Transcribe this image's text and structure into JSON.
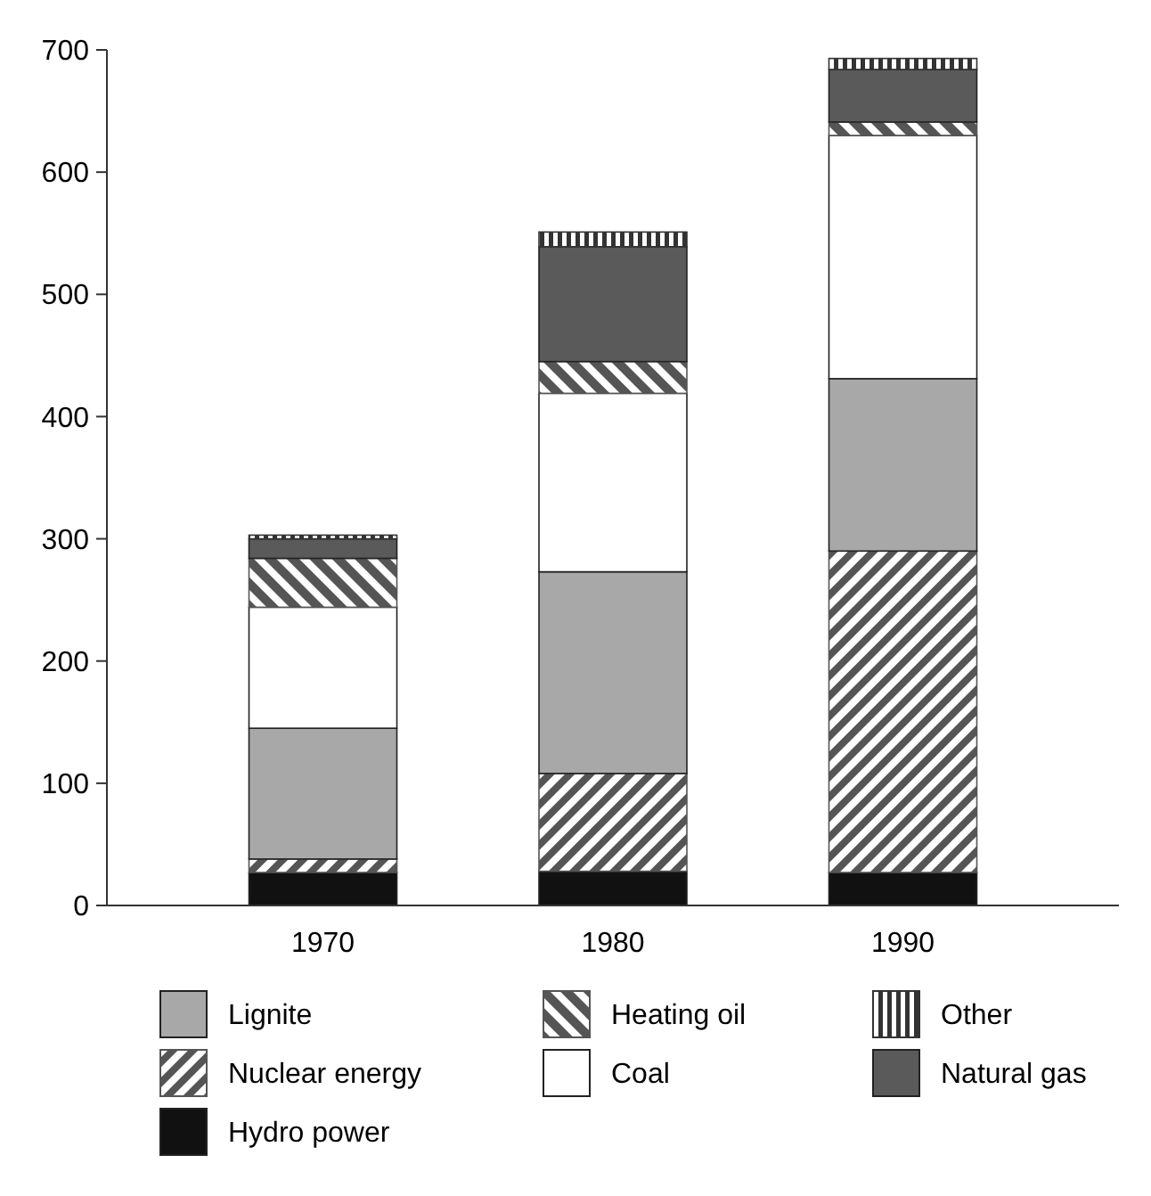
{
  "chart_data": {
    "type": "bar",
    "stacked": true,
    "categories": [
      "1970",
      "1980",
      "1990"
    ],
    "ylim": [
      0,
      700
    ],
    "yticks": [
      0,
      100,
      200,
      300,
      400,
      500,
      600,
      700
    ],
    "grid": false,
    "legend": "bottom",
    "series": [
      {
        "name": "Hydro power",
        "color": "#111111",
        "values": [
          27,
          28,
          27
        ]
      },
      {
        "name": "Nuclear energy",
        "color": "#555555",
        "values": [
          11,
          80,
          263
        ]
      },
      {
        "name": "Lignite",
        "color": "#a8a8a8",
        "values": [
          107,
          165,
          141
        ]
      },
      {
        "name": "Coal",
        "color": "#ffffff",
        "values": [
          99,
          146,
          199
        ]
      },
      {
        "name": "Heating oil",
        "color": "#555555",
        "values": [
          40,
          26,
          11
        ]
      },
      {
        "name": "Natural gas",
        "color": "#5a5a5a",
        "values": [
          16,
          94,
          43
        ]
      },
      {
        "name": "Other",
        "color": "#333333",
        "values": [
          3,
          12,
          9
        ]
      }
    ]
  }
}
